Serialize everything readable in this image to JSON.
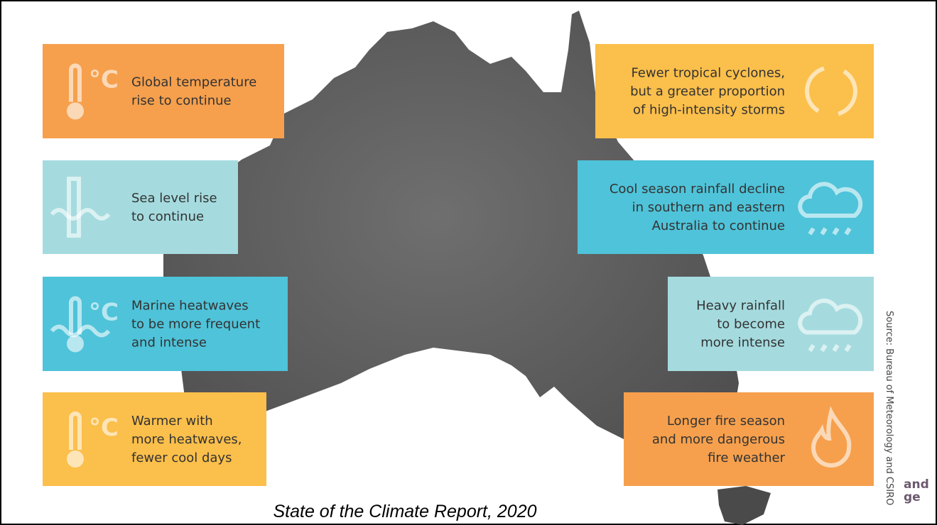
{
  "caption": "State of the Climate Report, 2020",
  "source": "Source: Bureau of Meteorology and CSIRO",
  "clipped_text": [
    "and",
    "ge"
  ],
  "panels": [
    {
      "lines": [
        "Global temperature",
        "rise to continue"
      ]
    },
    {
      "lines": [
        "Sea level rise",
        "to continue"
      ]
    },
    {
      "lines": [
        "Marine heatwaves",
        "to be more frequent",
        "and intense"
      ]
    },
    {
      "lines": [
        "Warmer with",
        "more heatwaves,",
        "fewer cool days"
      ]
    },
    {
      "lines": [
        "Fewer tropical cyclones,",
        "but a greater proportion",
        "of high-intensity storms"
      ]
    },
    {
      "lines": [
        "Cool season rainfall decline",
        "in southern and eastern",
        "Australia to continue"
      ]
    },
    {
      "lines": [
        "Heavy rainfall",
        "to become",
        "more intense"
      ]
    },
    {
      "lines": [
        "Longer fire season",
        "and more dangerous",
        "fire weather"
      ]
    }
  ]
}
